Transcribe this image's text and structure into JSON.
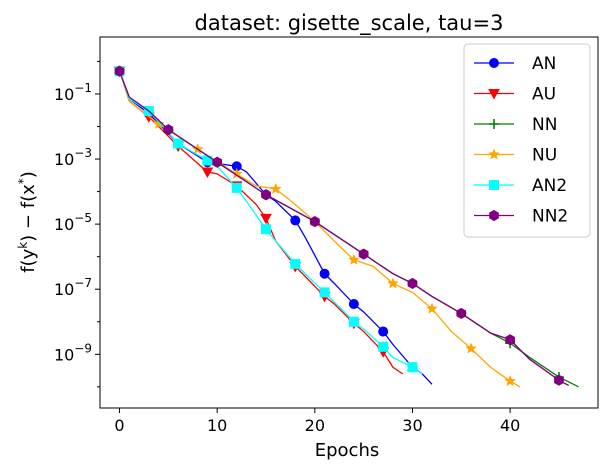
{
  "chart_data": {
    "type": "line",
    "title": "dataset: gisette_scale, tau=3",
    "xlabel": "Epochs",
    "ylabel_parts": [
      "f(y",
      "k",
      ") − f(x",
      "*",
      ")"
    ],
    "xlim": [
      -2,
      49
    ],
    "ylim_log10": [
      -10.65,
      0.75
    ],
    "yscale": "log",
    "xticks": [
      0,
      10,
      20,
      30,
      40
    ],
    "xtick_labels": [
      "0",
      "10",
      "20",
      "30",
      "40"
    ],
    "yticks_log10": [
      -1,
      -3,
      -5,
      -7,
      -9
    ],
    "ytick_base": "10",
    "ytick_exponents": [
      "−1",
      "−3",
      "−5",
      "−7",
      "−9"
    ],
    "legend_position": "top-right",
    "series": [
      {
        "name": "AN",
        "color": "#0000ff",
        "marker": "circle",
        "x": [
          0,
          1,
          3,
          6,
          9,
          12,
          13,
          15,
          16,
          18,
          19,
          21,
          22,
          24,
          25,
          27,
          28,
          30,
          31,
          32
        ],
        "y": [
          0.5,
          0.07,
          0.025,
          0.003,
          0.0008,
          0.0006,
          0.0004,
          8e-05,
          5e-05,
          1.3e-05,
          4e-06,
          3e-07,
          1.5e-07,
          3.5e-08,
          2e-08,
          5e-09,
          2e-09,
          4e-10,
          2.5e-10,
          1.2e-10
        ],
        "markers": [
          0,
          3,
          6,
          9,
          12,
          15,
          18,
          21,
          24,
          27,
          30
        ]
      },
      {
        "name": "AU",
        "color": "#ff0000",
        "marker": "triangle-down",
        "x": [
          0,
          1,
          3,
          6,
          9,
          10,
          12,
          14,
          15,
          16,
          18,
          19,
          21,
          22,
          24,
          25,
          27,
          28,
          29
        ],
        "y": [
          0.5,
          0.06,
          0.02,
          0.0025,
          0.0004,
          0.00035,
          0.00015,
          4e-05,
          1.5e-05,
          3e-06,
          5e-07,
          2.5e-07,
          6e-08,
          3.5e-08,
          9e-09,
          5e-09,
          1.2e-09,
          4e-10,
          2.5e-10
        ],
        "markers": [
          0,
          3,
          6,
          9,
          12,
          15,
          18,
          21,
          24,
          27
        ]
      },
      {
        "name": "NN",
        "color": "#008000",
        "marker": "plus",
        "x": [
          0,
          1,
          3,
          5,
          10,
          15,
          20,
          25,
          28,
          30,
          32,
          35,
          38,
          40,
          42,
          45,
          47
        ],
        "y": [
          0.5,
          0.08,
          0.03,
          0.008,
          0.0008,
          8e-05,
          1.2e-05,
          1.2e-06,
          3e-07,
          1.5e-07,
          6e-08,
          1.8e-08,
          4.5e-09,
          2.2e-09,
          8e-10,
          2e-10,
          1e-10
        ],
        "markers": [
          0,
          5,
          10,
          15,
          20,
          25,
          30,
          35,
          40,
          45
        ]
      },
      {
        "name": "NU",
        "color": "#ffa500",
        "marker": "star",
        "x": [
          0,
          1,
          4,
          8,
          12,
          14,
          16,
          18,
          20,
          22,
          24,
          26,
          28,
          30,
          32,
          34,
          36,
          38,
          40,
          41
        ],
        "y": [
          0.5,
          0.06,
          0.012,
          0.002,
          0.00035,
          0.00015,
          0.00012,
          4e-05,
          1.2e-05,
          3e-06,
          8e-07,
          5e-07,
          1.5e-07,
          8e-08,
          2.5e-08,
          5e-09,
          1.5e-09,
          4e-10,
          1.5e-10,
          1e-10
        ],
        "markers": [
          0,
          4,
          8,
          12,
          16,
          20,
          24,
          28,
          32,
          36,
          40
        ]
      },
      {
        "name": "AN2",
        "color": "#00ffff",
        "marker": "square",
        "x": [
          0,
          1,
          3,
          6,
          9,
          10,
          12,
          13,
          15,
          16,
          18,
          19,
          21,
          22,
          24,
          25,
          27,
          28,
          30,
          31
        ],
        "y": [
          0.5,
          0.07,
          0.03,
          0.003,
          0.0009,
          0.0006,
          0.00013,
          5e-05,
          7e-06,
          3e-06,
          6e-07,
          3e-07,
          8e-08,
          4e-08,
          1e-08,
          6e-09,
          1.7e-09,
          8e-10,
          4e-10,
          2.5e-10
        ],
        "markers": [
          0,
          3,
          6,
          9,
          12,
          15,
          18,
          21,
          24,
          27,
          30
        ]
      },
      {
        "name": "NN2",
        "color": "#800080",
        "marker": "hexagon",
        "x": [
          0,
          1,
          3,
          5,
          10,
          15,
          20,
          25,
          28,
          30,
          32,
          35,
          38,
          40,
          42,
          45,
          46
        ],
        "y": [
          0.5,
          0.08,
          0.03,
          0.008,
          0.0008,
          8e-05,
          1.2e-05,
          1.2e-06,
          3e-07,
          1.5e-07,
          6e-08,
          1.8e-08,
          4.5e-09,
          2.8e-09,
          7e-10,
          1.6e-10,
          1.1e-10
        ],
        "markers": [
          0,
          5,
          10,
          15,
          20,
          25,
          30,
          35,
          40,
          45
        ]
      }
    ]
  }
}
